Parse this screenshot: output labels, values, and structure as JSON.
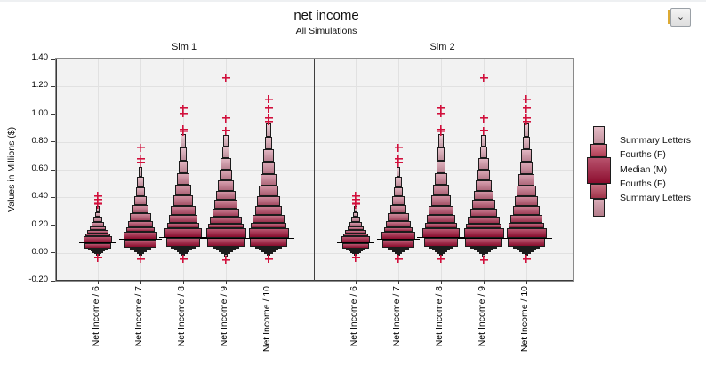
{
  "header": {
    "title": "net income",
    "subtitle": "All Simulations"
  },
  "controls": {
    "collapse_icon_glyph": "⌄",
    "collapse_icon_name": "chevron-down"
  },
  "y_axis": {
    "label": "Values in Millions ($)",
    "min": -0.2,
    "max": 1.4,
    "step": 0.2
  },
  "panels": [
    {
      "label": "Sim 1"
    },
    {
      "label": "Sim 2"
    }
  ],
  "categories": [
    "Net Income / 6",
    "Net Income / 7",
    "Net Income / 8",
    "Net Income / 9",
    "Net Income / 10"
  ],
  "legend": {
    "items": [
      "Summary Letters",
      "Fourths (F)",
      "Median (M)",
      "Fourths (F)",
      "Summary Letters"
    ]
  },
  "colors": {
    "box_dark": "#9c0f34",
    "box_light": "#dfb3bf",
    "legend_mid_upper": "#c4445e",
    "legend_mid_lower": "#b23a52",
    "legend_light_lower": "#c98b9b",
    "legend_light_upper": "#d9a2b0",
    "outlier": "#d2103c",
    "plot_bg": "#f2f2f2",
    "gridline": "#e1e1e1",
    "frame": "#8a8a8a",
    "divider": "#3f3f3f"
  },
  "chart_data": {
    "type": "boxplot",
    "variant": "letter-value (summary letters) plot",
    "title": "net income",
    "subtitle": "All Simulations",
    "ylabel": "Values in Millions ($)",
    "ylim": [
      -0.2,
      1.4
    ],
    "ytick_step": 0.2,
    "grid": true,
    "legend_position": "right",
    "legend_entries": [
      "Summary Letters",
      "Fourths (F)",
      "Median (M)",
      "Fourths (F)",
      "Summary Letters"
    ],
    "panels": [
      "Sim 1",
      "Sim 2"
    ],
    "categories": [
      "Net Income / 6",
      "Net Income / 7",
      "Net Income / 8",
      "Net Income / 9",
      "Net Income / 10"
    ],
    "series": [
      {
        "panel": "Sim 1",
        "values": [
          {
            "category": "Net Income / 6",
            "median": 0.07,
            "fourths": [
              0.03,
              0.12
            ],
            "letters_top": 0.335,
            "letters_bottom": -0.015,
            "outliers_high": [
              0.41,
              0.385,
              0.365,
              0.35
            ],
            "outliers_low": [
              -0.035
            ],
            "levels_above": 8,
            "levels_below": 6,
            "relative_width": 0.73
          },
          {
            "category": "Net Income / 7",
            "median": 0.095,
            "fourths": [
              0.04,
              0.155
            ],
            "letters_top": 0.62,
            "letters_bottom": -0.02,
            "outliers_high": [
              0.76,
              0.68,
              0.65
            ],
            "outliers_low": [
              -0.045
            ],
            "levels_above": 9,
            "levels_below": 6,
            "relative_width": 0.84
          },
          {
            "category": "Net Income / 8",
            "median": 0.11,
            "fourths": [
              0.045,
              0.175
            ],
            "letters_top": 0.855,
            "letters_bottom": -0.02,
            "outliers_high": [
              1.04,
              1.005,
              0.89,
              0.875
            ],
            "outliers_low": [
              -0.045
            ],
            "levels_above": 10,
            "levels_below": 6,
            "relative_width": 0.93
          },
          {
            "category": "Net Income / 9",
            "median": 0.105,
            "fourths": [
              0.045,
              0.175
            ],
            "letters_top": 0.85,
            "letters_bottom": -0.025,
            "outliers_high": [
              1.26,
              0.97,
              0.88
            ],
            "outliers_low": [
              -0.05
            ],
            "levels_above": 11,
            "levels_below": 6,
            "relative_width": 1.0
          },
          {
            "category": "Net Income / 10",
            "median": 0.105,
            "fourths": [
              0.045,
              0.18
            ],
            "letters_top": 0.935,
            "letters_bottom": -0.02,
            "outliers_high": [
              1.11,
              1.04,
              0.975,
              0.95
            ],
            "outliers_low": [
              -0.045
            ],
            "levels_above": 11,
            "levels_below": 6,
            "relative_width": 1.0
          }
        ]
      },
      {
        "panel": "Sim 2",
        "values": [
          {
            "category": "Net Income / 6",
            "median": 0.07,
            "fourths": [
              0.03,
              0.12
            ],
            "letters_top": 0.335,
            "letters_bottom": -0.015,
            "outliers_high": [
              0.41,
              0.385,
              0.365,
              0.35
            ],
            "outliers_low": [
              -0.035
            ],
            "levels_above": 8,
            "levels_below": 6,
            "relative_width": 0.73
          },
          {
            "category": "Net Income / 7",
            "median": 0.095,
            "fourths": [
              0.04,
              0.155
            ],
            "letters_top": 0.62,
            "letters_bottom": -0.02,
            "outliers_high": [
              0.76,
              0.68,
              0.65
            ],
            "outliers_low": [
              -0.045
            ],
            "levels_above": 9,
            "levels_below": 6,
            "relative_width": 0.84
          },
          {
            "category": "Net Income / 8",
            "median": 0.11,
            "fourths": [
              0.045,
              0.175
            ],
            "letters_top": 0.855,
            "letters_bottom": -0.02,
            "outliers_high": [
              1.04,
              1.005,
              0.89,
              0.875
            ],
            "outliers_low": [
              -0.045
            ],
            "levels_above": 10,
            "levels_below": 6,
            "relative_width": 0.93
          },
          {
            "category": "Net Income / 9",
            "median": 0.105,
            "fourths": [
              0.045,
              0.175
            ],
            "letters_top": 0.85,
            "letters_bottom": -0.025,
            "outliers_high": [
              1.26,
              0.97,
              0.88
            ],
            "outliers_low": [
              -0.05
            ],
            "levels_above": 11,
            "levels_below": 6,
            "relative_width": 1.0
          },
          {
            "category": "Net Income / 10",
            "median": 0.105,
            "fourths": [
              0.045,
              0.18
            ],
            "letters_top": 0.935,
            "letters_bottom": -0.02,
            "outliers_high": [
              1.11,
              1.04,
              0.975,
              0.95
            ],
            "outliers_low": [
              -0.045
            ],
            "levels_above": 11,
            "levels_below": 6,
            "relative_width": 1.0
          }
        ]
      }
    ]
  }
}
